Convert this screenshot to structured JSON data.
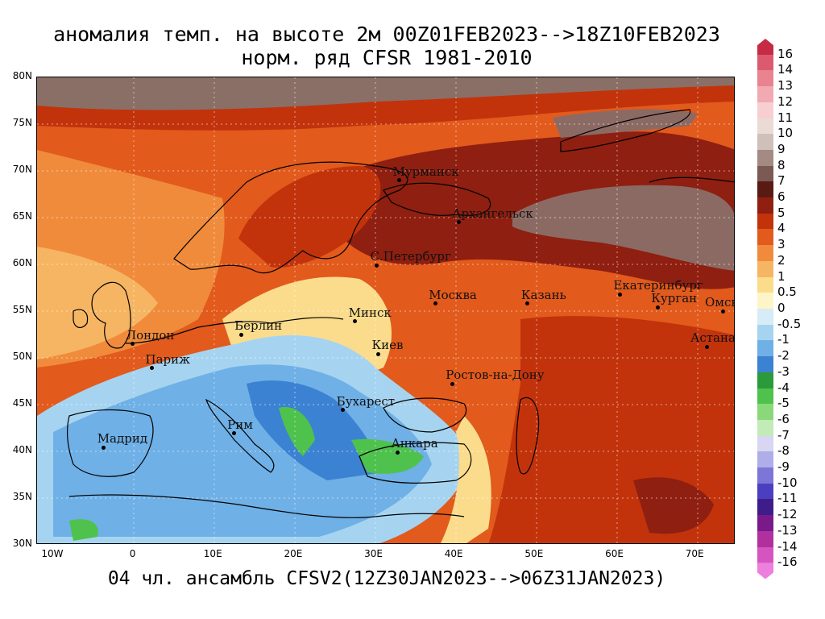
{
  "title_line1": "аномалия темп. на высоте 2м 00Z01FEB2023-->18Z10FEB2023",
  "title_line2": "норм. ряд CFSR 1981-2010",
  "footer": "04 чл. ансамбль CFSV2(12Z30JAN2023-->06Z31JAN2023)",
  "lat_labels": [
    "80N",
    "75N",
    "70N",
    "65N",
    "60N",
    "55N",
    "50N",
    "45N",
    "40N",
    "35N",
    "30N"
  ],
  "lon_labels": [
    "10W",
    "0",
    "10E",
    "20E",
    "30E",
    "40E",
    "50E",
    "60E",
    "70E"
  ],
  "cities": [
    {
      "name": "Мурманск",
      "lon": 33.1,
      "lat": 69.0
    },
    {
      "name": "Архангельск",
      "lon": 40.5,
      "lat": 64.5
    },
    {
      "name": "С.Петербург",
      "lon": 30.3,
      "lat": 59.9
    },
    {
      "name": "Москва",
      "lon": 37.6,
      "lat": 55.8
    },
    {
      "name": "Казань",
      "lon": 49.1,
      "lat": 55.8
    },
    {
      "name": "Екатеринбург",
      "lon": 60.6,
      "lat": 56.8
    },
    {
      "name": "Курган",
      "lon": 65.3,
      "lat": 55.4
    },
    {
      "name": "Омск",
      "lon": 73.4,
      "lat": 55.0
    },
    {
      "name": "Астана",
      "lon": 71.4,
      "lat": 51.2
    },
    {
      "name": "Минск",
      "lon": 27.6,
      "lat": 53.9
    },
    {
      "name": "Берлин",
      "lon": 13.4,
      "lat": 52.5
    },
    {
      "name": "Лондон",
      "lon": -0.1,
      "lat": 51.5
    },
    {
      "name": "Париж",
      "lon": 2.3,
      "lat": 48.9
    },
    {
      "name": "Киев",
      "lon": 30.5,
      "lat": 50.4
    },
    {
      "name": "Ростов-на-Дону",
      "lon": 39.7,
      "lat": 47.2
    },
    {
      "name": "Бухарест",
      "lon": 26.1,
      "lat": 44.4
    },
    {
      "name": "Рим",
      "lon": 12.5,
      "lat": 41.9
    },
    {
      "name": "Мадрид",
      "lon": -3.7,
      "lat": 40.4
    },
    {
      "name": "Анкара",
      "lon": 32.9,
      "lat": 39.9
    }
  ],
  "colorbar": {
    "labels": [
      "16",
      "14",
      "13",
      "12",
      "11",
      "10",
      "9",
      "8",
      "7",
      "6",
      "5",
      "4",
      "3",
      "2",
      "1",
      "0.5",
      "0",
      "-0.5",
      "-1",
      "-2",
      "-3",
      "-4",
      "-5",
      "-6",
      "-7",
      "-8",
      "-9",
      "-10",
      "-11",
      "-12",
      "-13",
      "-14",
      "-16"
    ],
    "colors": [
      "#c62b46",
      "#dc5a70",
      "#e8838f",
      "#f2aab2",
      "#f7cfd2",
      "#eadbd6",
      "#cfc0bb",
      "#a38a82",
      "#7a5a52",
      "#5a1a14",
      "#8f1f10",
      "#c2330c",
      "#e25a1c",
      "#f08b3c",
      "#f6b562",
      "#fbdc8c",
      "#fdf5c8",
      "#d6ecf7",
      "#a6d4f0",
      "#6fb0e6",
      "#3c82d2",
      "#2a9a3a",
      "#4ec24c",
      "#8ad87a",
      "#c3ebb8",
      "#d8d6f2",
      "#b0aee8",
      "#7d76d8",
      "#4c3fbf",
      "#3e1c8a",
      "#7a1a8a",
      "#b0309e",
      "#d654c0",
      "#ec80dc"
    ]
  },
  "field_colors": {
    "arctic": "#8a6f67",
    "deep_red": "#8f1f10",
    "red": "#c2330c",
    "orange_red": "#e25a1c",
    "orange": "#f08b3c",
    "light_orange": "#f6b562",
    "pale": "#fbdc8c",
    "cream": "#fdf5c8",
    "light_blue": "#a6d4f0",
    "blue": "#6fb0e6",
    "mid_blue": "#3c82d2",
    "green": "#4ec24c",
    "brown_grey": "#8c6a64"
  }
}
